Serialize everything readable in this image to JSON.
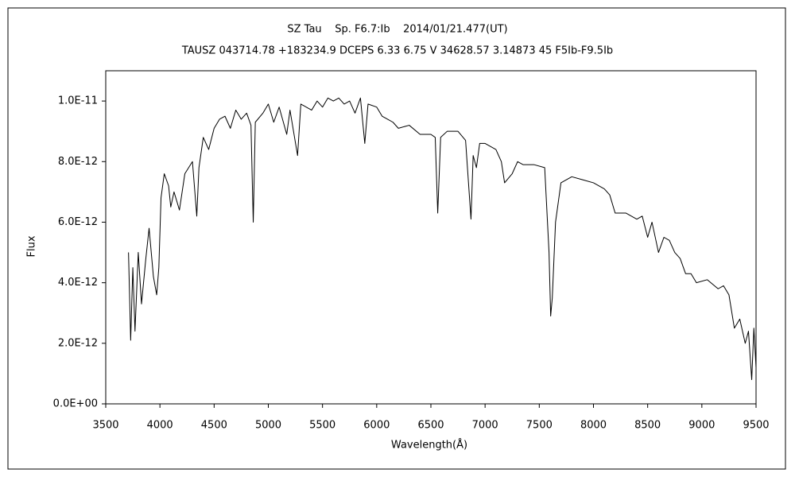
{
  "chart_data": {
    "type": "line",
    "title": "SZ Tau    Sp. F6.7:Ib    2014/01/21.477(UT)",
    "subtitle": "TAUSZ 043714.78 +183234.9 DCEPS 6.33 6.75 V 34628.57 3.14873 45 F5Ib-F9.5Ib",
    "xlabel": "Wavelength(Å)",
    "ylabel": "Flux",
    "xlim": [
      3500,
      9500
    ],
    "ylim": [
      0,
      1.1e-11
    ],
    "xticks": [
      3500,
      4000,
      4500,
      5000,
      5500,
      6000,
      6500,
      7000,
      7500,
      8000,
      8500,
      9000,
      9500
    ],
    "yticks": [
      {
        "value": 0,
        "label": "0.0E+00"
      },
      {
        "value": 2e-12,
        "label": "2.0E-12"
      },
      {
        "value": 4e-12,
        "label": "4.0E-12"
      },
      {
        "value": 6e-12,
        "label": "6.0E-12"
      },
      {
        "value": 8e-12,
        "label": "8.0E-12"
      },
      {
        "value": 1e-11,
        "label": "1.0E-11"
      }
    ],
    "grid": false,
    "color": "#000000",
    "x": [
      3710,
      3730,
      3750,
      3770,
      3800,
      3830,
      3870,
      3900,
      3940,
      3970,
      3990,
      4010,
      4040,
      4080,
      4100,
      4130,
      4180,
      4230,
      4300,
      4340,
      4360,
      4400,
      4450,
      4500,
      4550,
      4600,
      4650,
      4700,
      4750,
      4800,
      4840,
      4861,
      4880,
      4950,
      5000,
      5050,
      5100,
      5170,
      5200,
      5270,
      5300,
      5400,
      5450,
      5500,
      5550,
      5600,
      5650,
      5700,
      5750,
      5800,
      5850,
      5890,
      5920,
      6000,
      6050,
      6100,
      6150,
      6200,
      6300,
      6400,
      6500,
      6540,
      6563,
      6590,
      6650,
      6750,
      6820,
      6870,
      6890,
      6920,
      6950,
      7000,
      7100,
      7150,
      7180,
      7250,
      7300,
      7350,
      7450,
      7550,
      7590,
      7605,
      7620,
      7650,
      7700,
      7800,
      7900,
      8000,
      8100,
      8150,
      8200,
      8300,
      8400,
      8450,
      8500,
      8540,
      8600,
      8650,
      8700,
      8750,
      8800,
      8850,
      8900,
      8950,
      9050,
      9150,
      9200,
      9250,
      9300,
      9350,
      9400,
      9430,
      9460,
      9480,
      9500
    ],
    "values": [
      5e-12,
      2.1e-12,
      4.5e-12,
      2.4e-12,
      5e-12,
      3.3e-12,
      4.8e-12,
      5.8e-12,
      4.2e-12,
      3.6e-12,
      4.5e-12,
      6.8e-12,
      7.6e-12,
      7.2e-12,
      6.5e-12,
      7e-12,
      6.4e-12,
      7.6e-12,
      8e-12,
      6.2e-12,
      7.8e-12,
      8.8e-12,
      8.4e-12,
      9.1e-12,
      9.4e-12,
      9.5e-12,
      9.1e-12,
      9.7e-12,
      9.4e-12,
      9.6e-12,
      9.2e-12,
      6e-12,
      9.3e-12,
      9.6e-12,
      9.9e-12,
      9.3e-12,
      9.8e-12,
      8.9e-12,
      9.7e-12,
      8.2e-12,
      9.9e-12,
      9.7e-12,
      1e-11,
      9.8e-12,
      1.01e-11,
      1e-11,
      1.01e-11,
      9.9e-12,
      1e-11,
      9.6e-12,
      1.01e-11,
      8.6e-12,
      9.9e-12,
      9.8e-12,
      9.5e-12,
      9.4e-12,
      9.3e-12,
      9.1e-12,
      9.2e-12,
      8.9e-12,
      8.9e-12,
      8.8e-12,
      6.3e-12,
      8.8e-12,
      9e-12,
      9e-12,
      8.7e-12,
      6.1e-12,
      8.2e-12,
      7.8e-12,
      8.6e-12,
      8.6e-12,
      8.4e-12,
      8e-12,
      7.3e-12,
      7.6e-12,
      8e-12,
      7.9e-12,
      7.9e-12,
      7.8e-12,
      5e-12,
      2.9e-12,
      3.5e-12,
      6e-12,
      7.3e-12,
      7.5e-12,
      7.4e-12,
      7.3e-12,
      7.1e-12,
      6.9e-12,
      6.3e-12,
      6.3e-12,
      6.1e-12,
      6.2e-12,
      5.5e-12,
      6e-12,
      5e-12,
      5.5e-12,
      5.4e-12,
      5e-12,
      4.8e-12,
      4.3e-12,
      4.3e-12,
      4e-12,
      4.1e-12,
      3.8e-12,
      3.9e-12,
      3.6e-12,
      2.5e-12,
      2.8e-12,
      2e-12,
      2.4e-12,
      8e-13,
      2.5e-12,
      1.2e-12
    ]
  }
}
